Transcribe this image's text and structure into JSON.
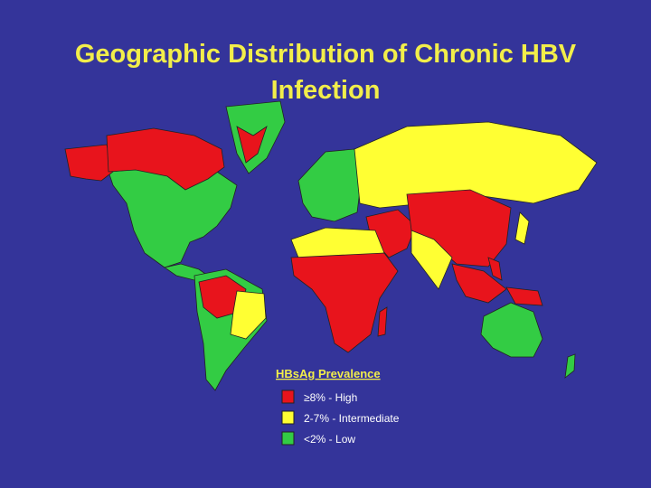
{
  "title": "Geographic Distribution of Chronic HBV Infection",
  "legend": {
    "title": "HBsAg Prevalence",
    "items": [
      {
        "label": "≥8% - High",
        "color": "#e8141c"
      },
      {
        "label": "2-7% - Intermediate",
        "color": "#ffff33"
      },
      {
        "label": "<2% - Low",
        "color": "#33cc44"
      }
    ]
  }
}
